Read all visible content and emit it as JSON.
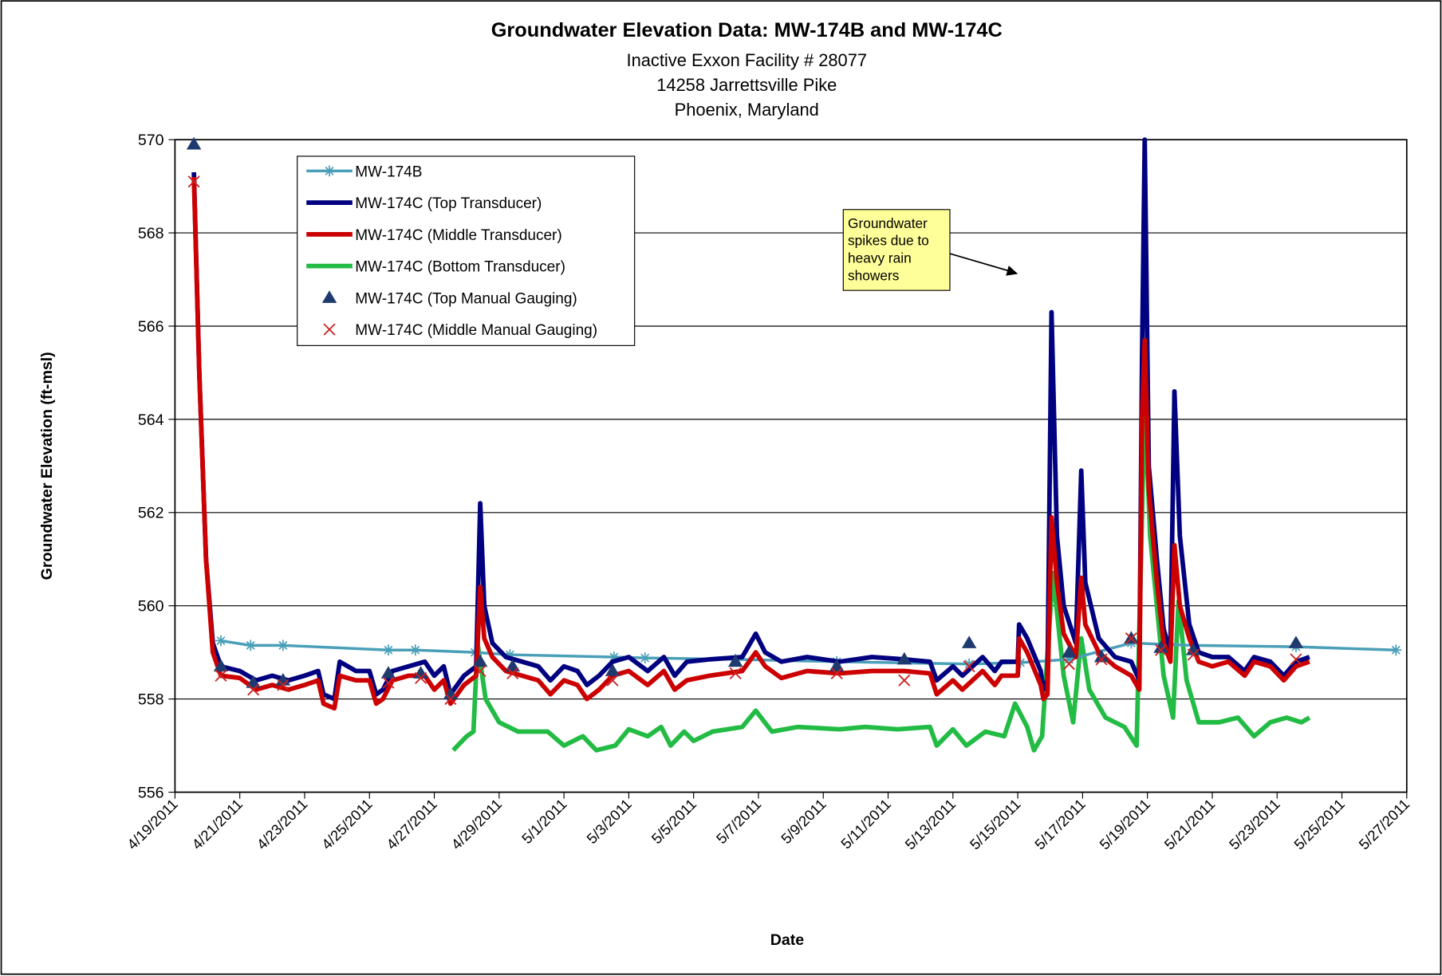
{
  "chart_data": {
    "type": "line",
    "title": "Groundwater Elevation Data: MW-174B and MW-174C",
    "subtitle": [
      "Inactive Exxon Facility # 28077",
      "14258 Jarrettsville Pike",
      "Phoenix, Maryland"
    ],
    "x_label": "Date",
    "y_label": "Groundwater Elevation  (ft-msl)",
    "annotation": [
      "Groundwater",
      "spikes due to",
      "heavy rain",
      "showers"
    ],
    "xlim": [
      "4/19/2011",
      "5/27/2011"
    ],
    "xticks": [
      "4/19/2011",
      "4/21/2011",
      "4/23/2011",
      "4/25/2011",
      "4/27/2011",
      "4/29/2011",
      "5/1/2011",
      "5/3/2011",
      "5/5/2011",
      "5/7/2011",
      "5/9/2011",
      "5/11/2011",
      "5/13/2011",
      "5/15/2011",
      "5/17/2011",
      "5/19/2011",
      "5/21/2011",
      "5/23/2011",
      "5/25/2011",
      "5/27/2011"
    ],
    "ylim": [
      556,
      570
    ],
    "yticks": [
      556,
      558,
      560,
      562,
      564,
      566,
      568,
      570
    ],
    "grid": true,
    "legend": "upper left",
    "x": [
      "4/19/2011 14:00",
      "4/19/2011 18:00",
      "4/19/2011 23:00",
      "4/20/2011 04:00",
      "4/20/2011 10:00",
      "4/21/2011 00:00",
      "4/21/2011 12:00",
      "4/22/2011 00:00",
      "4/22/2011 12:00",
      "4/23/2011 00:00",
      "4/23/2011 10:00",
      "4/23/2011 14:00",
      "4/23/2011 22:00",
      "4/24/2011 02:00",
      "4/24/2011 14:00",
      "4/25/2011 00:00",
      "4/25/2011 05:00",
      "4/25/2011 10:00",
      "4/25/2011 17:00",
      "4/26/2011 05:00",
      "4/26/2011 17:00",
      "4/27/2011 00:00",
      "4/27/2011 07:00",
      "4/27/2011 12:00",
      "4/27/2011 22:00",
      "4/28/2011 07:00",
      "4/28/2011 10:00",
      "4/28/2011 13:00",
      "4/28/2011 19:00",
      "4/29/2011 05:00",
      "4/29/2011 17:00",
      "4/30/2011 05:00",
      "4/30/2011 14:00",
      "5/1/2011 00:00",
      "5/1/2011 10:00",
      "5/1/2011 17:00",
      "5/2/2011 02:00",
      "5/2/2011 12:00",
      "5/3/2011 00:00",
      "5/3/2011 14:00",
      "5/4/2011 02:00",
      "5/4/2011 10:00",
      "5/4/2011 19:00",
      "5/5/2011 12:00",
      "5/6/2011 12:00",
      "5/6/2011 22:00",
      "5/7/2011 05:00",
      "5/7/2011 17:00",
      "5/8/2011 12:00",
      "5/9/2011 12:00",
      "5/10/2011 12:00",
      "5/11/2011 12:00",
      "5/12/2011 07:00",
      "5/12/2011 12:00",
      "5/13/2011 00:00",
      "5/13/2011 07:00",
      "5/13/2011 22:00",
      "5/14/2011 07:00",
      "5/14/2011 12:00",
      "5/15/2011 00:00",
      "5/15/2011 01:00",
      "5/15/2011 07:00",
      "5/15/2011 17:00",
      "5/15/2011 19:00",
      "5/15/2011 22:00",
      "5/16/2011 01:00",
      "5/16/2011 05:00",
      "5/16/2011 10:00",
      "5/16/2011 19:00",
      "5/16/2011 23:00",
      "5/17/2011 02:00",
      "5/17/2011 12:00",
      "5/18/2011 00:00",
      "5/18/2011 12:00",
      "5/18/2011 18:00",
      "5/18/2011 20:00",
      "5/18/2011 22:00",
      "5/19/2011 01:00",
      "5/19/2011 07:00",
      "5/19/2011 12:00",
      "5/19/2011 17:00",
      "5/19/2011 20:00",
      "5/20/2011 00:00",
      "5/20/2011 07:00",
      "5/20/2011 14:00",
      "5/21/2011 00:00",
      "5/21/2011 12:00",
      "5/22/2011 00:00",
      "5/22/2011 07:00",
      "5/22/2011 19:00",
      "5/23/2011 05:00",
      "5/23/2011 14:00",
      "5/24/2011 00:00"
    ],
    "series": [
      {
        "name": "MW-174B",
        "color": "#4a9fb8",
        "line": true,
        "width": 3,
        "marker": "star",
        "x": [
          "4/20/2011 10:00",
          "4/21/2011 08:00",
          "4/22/2011 08:00",
          "4/25/2011 14:00",
          "4/26/2011 10:00",
          "4/28/2011 06:00",
          "4/29/2011 08:00",
          "5/2/2011 13:00",
          "5/3/2011 12:00",
          "5/6/2011 07:00",
          "5/9/2011 10:00",
          "5/13/2011 12:00",
          "5/15/2011 02:00",
          "5/16/2011 14:00",
          "5/18/2011 12:00",
          "5/20/2011 10:00",
          "5/23/2011 14:00",
          "5/26/2011 16:00"
        ],
        "values": [
          559.25,
          559.15,
          559.15,
          559.05,
          559.05,
          559.0,
          558.95,
          558.9,
          558.88,
          558.85,
          558.8,
          558.75,
          558.78,
          558.85,
          559.2,
          559.15,
          559.12,
          559.05
        ]
      },
      {
        "name": "MW-174C (Top Transducer)",
        "color": "#000080",
        "line": true,
        "width": 5,
        "values": [
          569.3,
          565,
          561,
          559.2,
          558.7,
          558.6,
          558.4,
          558.5,
          558.4,
          558.5,
          558.6,
          558.1,
          558.0,
          558.8,
          558.6,
          558.6,
          558.1,
          558.2,
          558.6,
          558.7,
          558.8,
          558.5,
          558.7,
          558.1,
          558.5,
          558.7,
          562.2,
          560.0,
          559.2,
          558.9,
          558.8,
          558.7,
          558.4,
          558.7,
          558.6,
          558.3,
          558.5,
          558.8,
          558.9,
          558.6,
          558.9,
          558.5,
          558.8,
          558.85,
          558.9,
          559.4,
          559.0,
          558.8,
          558.9,
          558.8,
          558.9,
          558.85,
          558.8,
          558.4,
          558.7,
          558.5,
          558.9,
          558.6,
          558.8,
          558.8,
          559.6,
          559.3,
          558.6,
          558.2,
          558.4,
          566.3,
          561.5,
          560.0,
          559.2,
          562.9,
          560.5,
          559.3,
          558.9,
          558.8,
          558.4,
          565.3,
          570.0,
          563,
          561,
          559.5,
          559.0,
          564.6,
          561.5,
          559.6,
          559.0,
          558.9,
          558.9,
          558.6,
          558.9,
          558.8,
          558.5,
          558.8,
          558.9
        ]
      },
      {
        "name": "MW-174C (Middle Transducer)",
        "color": "#cc0000",
        "line": true,
        "width": 5,
        "values": [
          569.2,
          565,
          561,
          559.0,
          558.5,
          558.45,
          558.2,
          558.3,
          558.2,
          558.3,
          558.4,
          557.9,
          557.8,
          558.5,
          558.4,
          558.4,
          557.9,
          558.0,
          558.4,
          558.5,
          558.5,
          558.2,
          558.4,
          557.9,
          558.3,
          558.5,
          560.4,
          559.3,
          558.9,
          558.6,
          558.5,
          558.4,
          558.1,
          558.4,
          558.3,
          558.0,
          558.2,
          558.5,
          558.6,
          558.3,
          558.6,
          558.2,
          558.4,
          558.5,
          558.6,
          559.0,
          558.7,
          558.45,
          558.6,
          558.55,
          558.6,
          558.6,
          558.55,
          558.1,
          558.4,
          558.2,
          558.6,
          558.3,
          558.5,
          558.5,
          559.3,
          559.0,
          558.3,
          558.0,
          558.1,
          561.9,
          560.5,
          559.4,
          558.9,
          560.6,
          559.6,
          559.0,
          558.7,
          558.5,
          558.2,
          564.0,
          565.7,
          562.5,
          560.5,
          559.2,
          558.8,
          561.3,
          560.0,
          559.3,
          558.8,
          558.7,
          558.8,
          558.5,
          558.8,
          558.7,
          558.4,
          558.7,
          558.8
        ]
      },
      {
        "name": "MW-174C (Bottom Transducer)",
        "color": "#22bb44",
        "line": true,
        "width": 5,
        "x": [
          "4/27/2011 14:00",
          "4/28/2011 00:00",
          "4/28/2011 05:00",
          "4/28/2011 08:00",
          "4/28/2011 14:00",
          "4/29/2011 00:00",
          "4/29/2011 14:00",
          "4/30/2011 12:00",
          "5/1/2011 00:00",
          "5/1/2011 14:00",
          "5/2/2011 00:00",
          "5/2/2011 14:00",
          "5/3/2011 00:00",
          "5/3/2011 14:00",
          "5/4/2011 00:00",
          "5/4/2011 07:00",
          "5/4/2011 17:00",
          "5/5/2011 00:00",
          "5/5/2011 14:00",
          "5/6/2011 12:00",
          "5/6/2011 22:00",
          "5/7/2011 10:00",
          "5/8/2011 05:00",
          "5/9/2011 12:00",
          "5/10/2011 07:00",
          "5/11/2011 07:00",
          "5/12/2011 07:00",
          "5/12/2011 12:00",
          "5/13/2011 00:00",
          "5/13/2011 10:00",
          "5/14/2011 00:00",
          "5/14/2011 14:00",
          "5/14/2011 22:00",
          "5/15/2011 07:00",
          "5/15/2011 12:00",
          "5/15/2011 18:00",
          "5/16/2011 02:00",
          "5/16/2011 10:00",
          "5/16/2011 17:00",
          "5/16/2011 23:00",
          "5/17/2011 05:00",
          "5/17/2011 17:00",
          "5/18/2011 07:00",
          "5/18/2011 16:00",
          "5/18/2011 22:00",
          "5/19/2011 02:00",
          "5/19/2011 12:00",
          "5/19/2011 19:00",
          "5/19/2011 23:00",
          "5/20/2011 05:00",
          "5/20/2011 14:00",
          "5/21/2011 05:00",
          "5/21/2011 19:00",
          "5/22/2011 07:00",
          "5/22/2011 19:00",
          "5/23/2011 07:00",
          "5/23/2011 18:00",
          "5/24/2011 00:00"
        ],
        "values": [
          556.9,
          557.2,
          557.3,
          559.2,
          558.0,
          557.5,
          557.3,
          557.3,
          557.0,
          557.2,
          556.9,
          557.0,
          557.35,
          557.2,
          557.4,
          557.0,
          557.3,
          557.1,
          557.3,
          557.4,
          557.75,
          557.3,
          557.4,
          557.35,
          557.4,
          557.35,
          557.4,
          557.0,
          557.35,
          557.0,
          557.3,
          557.2,
          557.9,
          557.4,
          556.9,
          557.2,
          560.7,
          558.5,
          557.5,
          559.3,
          558.2,
          557.6,
          557.4,
          557.0,
          564.4,
          561.5,
          558.5,
          557.6,
          560.1,
          558.4,
          557.5,
          557.5,
          557.6,
          557.2,
          557.5,
          557.6,
          557.5,
          557.6
        ]
      },
      {
        "name": "MW-174C (Top Manual Gauging)",
        "color": "#1f3a6e",
        "line": false,
        "marker": "triangle",
        "x": [
          "4/19/2011 14:00",
          "4/20/2011 10:00",
          "4/21/2011 10:00",
          "4/22/2011 08:00",
          "4/25/2011 14:00",
          "4/26/2011 14:00",
          "4/27/2011 12:00",
          "4/28/2011 10:00",
          "4/29/2011 10:00",
          "5/2/2011 12:00",
          "5/6/2011 07:00",
          "5/9/2011 10:00",
          "5/11/2011 12:00",
          "5/13/2011 12:00",
          "5/16/2011 14:00",
          "5/17/2011 14:00",
          "5/18/2011 12:00",
          "5/19/2011 10:00",
          "5/20/2011 10:00",
          "5/23/2011 14:00"
        ],
        "values": [
          569.9,
          558.7,
          558.35,
          558.4,
          558.55,
          558.55,
          558.1,
          558.8,
          558.7,
          558.6,
          558.8,
          558.7,
          558.85,
          559.2,
          559.0,
          558.9,
          559.3,
          559.1,
          559.05,
          559.2
        ]
      },
      {
        "name": "MW-174C (Middle Manual Gauging)",
        "color": "#cc2222",
        "line": false,
        "marker": "x",
        "x": [
          "4/19/2011 14:00",
          "4/20/2011 10:00",
          "4/21/2011 10:00",
          "4/22/2011 08:00",
          "4/25/2011 14:00",
          "4/26/2011 14:00",
          "4/27/2011 12:00",
          "4/28/2011 10:00",
          "4/29/2011 10:00",
          "5/2/2011 12:00",
          "5/6/2011 07:00",
          "5/9/2011 10:00",
          "5/11/2011 12:00",
          "5/13/2011 12:00",
          "5/16/2011 14:00",
          "5/17/2011 14:00",
          "5/18/2011 12:00",
          "5/19/2011 10:00",
          "5/20/2011 10:00",
          "5/23/2011 14:00"
        ],
        "values": [
          569.1,
          558.5,
          558.2,
          558.3,
          558.35,
          558.45,
          558.0,
          558.6,
          558.55,
          558.4,
          558.55,
          558.55,
          558.4,
          558.7,
          558.75,
          558.85,
          559.3,
          559.05,
          558.95,
          558.85
        ]
      }
    ]
  }
}
